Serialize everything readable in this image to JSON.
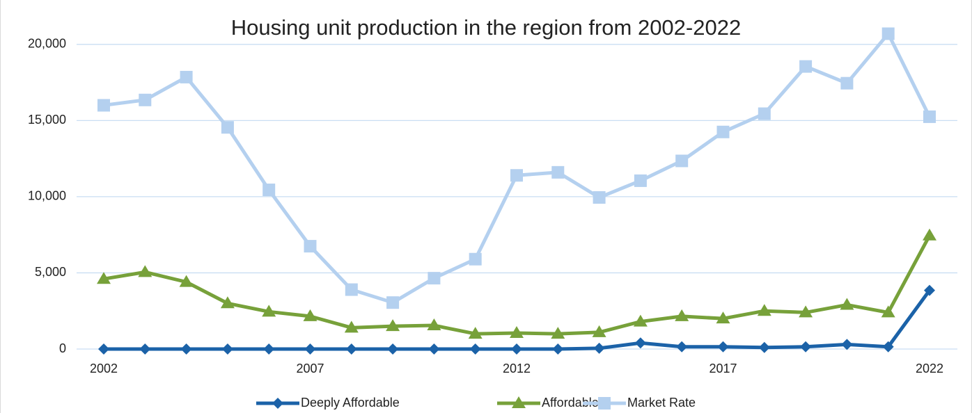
{
  "chart_data": {
    "type": "line",
    "title": "Housing unit production in the region from 2002-2022",
    "x": [
      2002,
      2003,
      2004,
      2005,
      2006,
      2007,
      2008,
      2009,
      2010,
      2011,
      2012,
      2013,
      2014,
      2015,
      2016,
      2017,
      2018,
      2019,
      2020,
      2021,
      2022
    ],
    "xlim": [
      2002,
      2022
    ],
    "xticks": [
      2002,
      2007,
      2012,
      2017,
      2022
    ],
    "ylim": [
      0,
      22000
    ],
    "yticks": [
      0,
      {
        "value": 5000,
        "label": "5,000"
      },
      {
        "value": 10000,
        "label": "10,000"
      },
      {
        "value": 15000,
        "label": "15,000"
      },
      {
        "value": 20000,
        "label": "20,000"
      }
    ],
    "grid": true,
    "legend": "bottom",
    "series": [
      {
        "name": "Deeply Affordable",
        "color": "#1b62a8",
        "marker": "diamond",
        "values": [
          0,
          0,
          0,
          0,
          0,
          0,
          0,
          0,
          0,
          0,
          0,
          0,
          50,
          400,
          150,
          150,
          100,
          150,
          300,
          150,
          3850
        ]
      },
      {
        "name": "Affordable",
        "color": "#77a13a",
        "marker": "triangle",
        "values": [
          4600,
          5050,
          4400,
          3000,
          2450,
          2150,
          1400,
          1500,
          1550,
          1000,
          1050,
          1000,
          1100,
          1800,
          2150,
          2000,
          2500,
          2400,
          2900,
          2400,
          7450
        ]
      },
      {
        "name": "Market Rate",
        "color": "#b4d0ef",
        "marker": "square",
        "values": [
          16000,
          16350,
          17850,
          14550,
          10450,
          6750,
          3900,
          3050,
          4650,
          5900,
          11400,
          11600,
          9950,
          11050,
          12350,
          14250,
          15450,
          18550,
          17450,
          20700,
          15250
        ]
      }
    ]
  }
}
